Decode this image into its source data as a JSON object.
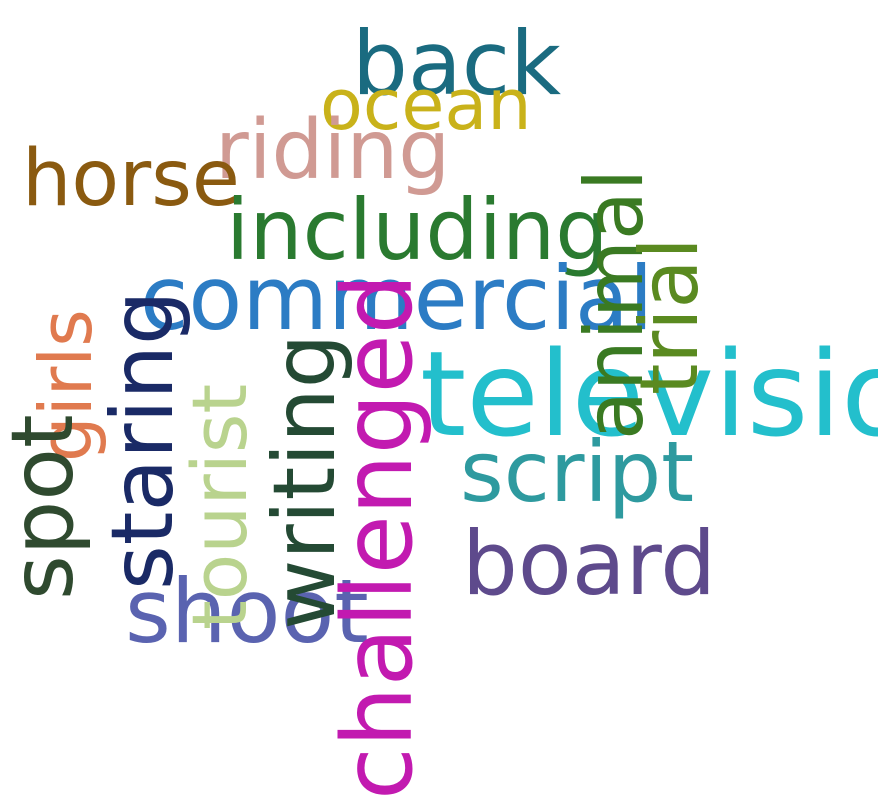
{
  "words": [
    {
      "id": "back",
      "text": "back",
      "color": "#1a6b80",
      "orientation": "horizontal"
    },
    {
      "id": "ocean",
      "text": "ocean",
      "color": "#c9b21a",
      "orientation": "horizontal"
    },
    {
      "id": "riding",
      "text": "riding",
      "color": "#d09a93",
      "orientation": "horizontal"
    },
    {
      "id": "horse",
      "text": "horse",
      "color": "#8a5a10",
      "orientation": "horizontal"
    },
    {
      "id": "including",
      "text": "including",
      "color": "#2a7a30",
      "orientation": "horizontal"
    },
    {
      "id": "commercial",
      "text": "commercial",
      "color": "#2c7cc4",
      "orientation": "horizontal"
    },
    {
      "id": "television",
      "text": "television",
      "color": "#23bfcc",
      "orientation": "horizontal"
    },
    {
      "id": "script",
      "text": "script",
      "color": "#2e9a9f",
      "orientation": "horizontal"
    },
    {
      "id": "board",
      "text": "board",
      "color": "#5e4a8c",
      "orientation": "horizontal"
    },
    {
      "id": "shoot",
      "text": "shoot",
      "color": "#5a63b0",
      "orientation": "horizontal"
    },
    {
      "id": "challenged",
      "text": "challenged",
      "color": "#c21ab0",
      "orientation": "vertical"
    },
    {
      "id": "writing",
      "text": "writing",
      "color": "#244a34",
      "orientation": "vertical"
    },
    {
      "id": "tourist",
      "text": "tourist",
      "color": "#b9d38e",
      "orientation": "vertical"
    },
    {
      "id": "staring",
      "text": "staring",
      "color": "#1a2a66",
      "orientation": "vertical"
    },
    {
      "id": "girls",
      "text": "girls",
      "color": "#e07a4f",
      "orientation": "vertical"
    },
    {
      "id": "spot",
      "text": "spot",
      "color": "#2f4a2f",
      "orientation": "vertical"
    },
    {
      "id": "animal",
      "text": "animal",
      "color": "#3a7a22",
      "orientation": "vertical"
    },
    {
      "id": "trial",
      "text": "trial",
      "color": "#5a8a20",
      "orientation": "vertical"
    }
  ]
}
